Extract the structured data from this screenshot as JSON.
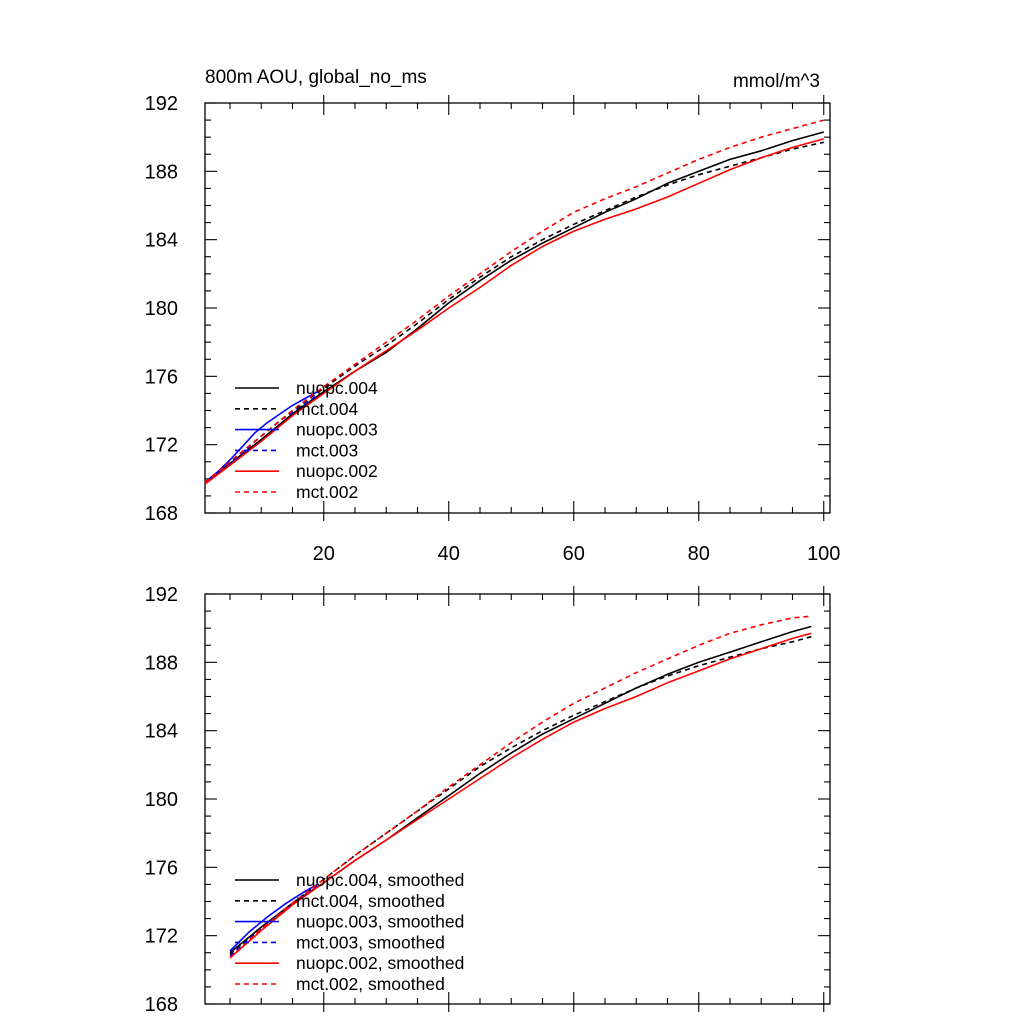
{
  "colors": {
    "black": "#000000",
    "blue": "#0000ff",
    "red": "#ff0000"
  },
  "chart_data": [
    {
      "type": "line",
      "title_left": "800m AOU, global_no_ms",
      "title_right": "mmol/m^3",
      "xlim": [
        1,
        101
      ],
      "ylim": [
        168,
        192
      ],
      "yticks": [
        168,
        172,
        176,
        180,
        184,
        188,
        192
      ],
      "xticks": [
        20,
        40,
        60,
        80,
        100
      ],
      "show_x_tick_labels": true,
      "legend_position": "bottom-left",
      "series": [
        {
          "name": "nuopc.004",
          "color": "#000000",
          "dash": "solid",
          "x": [
            1,
            5,
            10,
            15,
            20,
            25,
            30,
            35,
            40,
            45,
            50,
            55,
            60,
            65,
            70,
            75,
            80,
            85,
            90,
            95,
            100
          ],
          "y": [
            169.8,
            170.9,
            172.3,
            173.8,
            175.1,
            176.3,
            177.4,
            178.8,
            180.3,
            181.6,
            182.8,
            183.8,
            184.7,
            185.6,
            186.4,
            187.3,
            188.0,
            188.7,
            189.2,
            189.8,
            190.3
          ]
        },
        {
          "name": "mct.004",
          "color": "#000000",
          "dash": "dashed",
          "x": [
            1,
            5,
            10,
            15,
            20,
            25,
            30,
            35,
            40,
            45,
            50,
            55,
            60,
            65,
            70,
            75,
            80,
            85,
            90,
            95,
            100
          ],
          "y": [
            169.8,
            171.0,
            172.5,
            174.0,
            175.3,
            176.6,
            177.8,
            179.1,
            180.5,
            181.8,
            183.0,
            184.0,
            184.9,
            185.7,
            186.5,
            187.2,
            187.8,
            188.3,
            188.8,
            189.3,
            189.7
          ]
        },
        {
          "name": "nuopc.003",
          "color": "#0000ff",
          "dash": "solid",
          "x": [
            1,
            3,
            5,
            7,
            9,
            11,
            13,
            15,
            17,
            19
          ],
          "y": [
            169.8,
            170.4,
            171.1,
            171.9,
            172.7,
            173.3,
            173.8,
            174.3,
            174.7,
            175.1
          ]
        },
        {
          "name": "mct.003",
          "color": "#0000ff",
          "dash": "dashed",
          "x": [
            1,
            3,
            5,
            7,
            9,
            11,
            13,
            15,
            17,
            19
          ],
          "y": [
            169.8,
            170.3,
            170.9,
            171.5,
            172.2,
            172.8,
            173.4,
            173.9,
            174.4,
            174.9
          ]
        },
        {
          "name": "nuopc.002",
          "color": "#ff0000",
          "dash": "solid",
          "x": [
            1,
            5,
            10,
            15,
            20,
            25,
            30,
            35,
            40,
            45,
            50,
            55,
            60,
            65,
            70,
            75,
            80,
            85,
            90,
            95,
            100
          ],
          "y": [
            169.7,
            170.8,
            172.2,
            173.7,
            175.0,
            176.3,
            177.5,
            178.7,
            180.0,
            181.2,
            182.5,
            183.6,
            184.5,
            185.2,
            185.8,
            186.5,
            187.3,
            188.1,
            188.8,
            189.4,
            189.9
          ]
        },
        {
          "name": "mct.002",
          "color": "#ff0000",
          "dash": "dashed",
          "x": [
            1,
            5,
            10,
            15,
            20,
            25,
            30,
            35,
            40,
            45,
            50,
            55,
            60,
            65,
            70,
            75,
            80,
            85,
            90,
            95,
            100
          ],
          "y": [
            169.8,
            171.0,
            172.5,
            174.0,
            175.4,
            176.7,
            178.0,
            179.3,
            180.7,
            182.0,
            183.3,
            184.5,
            185.6,
            186.4,
            187.1,
            187.9,
            188.7,
            189.4,
            190.0,
            190.5,
            191.0
          ]
        }
      ]
    },
    {
      "type": "line",
      "xlim": [
        1,
        101
      ],
      "ylim": [
        168,
        192
      ],
      "yticks": [
        168,
        172,
        176,
        180,
        184,
        188,
        192
      ],
      "xticks": [
        20,
        40,
        60,
        80,
        100
      ],
      "show_x_tick_labels": false,
      "legend_position": "bottom-left",
      "series": [
        {
          "name": "nuopc.004, smoothed",
          "color": "#000000",
          "dash": "solid",
          "x": [
            5,
            10,
            15,
            20,
            25,
            30,
            35,
            40,
            45,
            50,
            55,
            60,
            65,
            70,
            75,
            80,
            85,
            90,
            95,
            98
          ],
          "y": [
            171.0,
            172.5,
            173.9,
            175.1,
            176.4,
            177.6,
            178.9,
            180.2,
            181.5,
            182.7,
            183.8,
            184.7,
            185.6,
            186.5,
            187.3,
            188.0,
            188.6,
            189.2,
            189.8,
            190.1
          ]
        },
        {
          "name": "mct.004, smoothed",
          "color": "#000000",
          "dash": "dashed",
          "x": [
            5,
            10,
            15,
            20,
            25,
            30,
            35,
            40,
            45,
            50,
            55,
            60,
            65,
            70,
            75,
            80,
            85,
            90,
            95,
            98
          ],
          "y": [
            170.9,
            172.5,
            173.9,
            175.3,
            176.7,
            178.0,
            179.3,
            180.6,
            181.9,
            183.0,
            184.0,
            184.9,
            185.7,
            186.5,
            187.2,
            187.8,
            188.3,
            188.8,
            189.2,
            189.5
          ]
        },
        {
          "name": "nuopc.003, smoothed",
          "color": "#0000ff",
          "dash": "solid",
          "x": [
            5,
            8,
            11,
            14,
            17,
            19
          ],
          "y": [
            171.1,
            172.2,
            173.1,
            173.9,
            174.6,
            175.0
          ]
        },
        {
          "name": "mct.003, smoothed",
          "color": "#0000ff",
          "dash": "dashed",
          "x": [
            5,
            8,
            11,
            14,
            17,
            19
          ],
          "y": [
            170.8,
            171.8,
            172.7,
            173.6,
            174.4,
            174.9
          ]
        },
        {
          "name": "nuopc.002, smoothed",
          "color": "#ff0000",
          "dash": "solid",
          "x": [
            5,
            10,
            15,
            20,
            25,
            30,
            35,
            40,
            45,
            50,
            55,
            60,
            65,
            70,
            75,
            80,
            85,
            90,
            95,
            98
          ],
          "y": [
            170.7,
            172.3,
            173.8,
            175.1,
            176.4,
            177.6,
            178.8,
            180.0,
            181.2,
            182.4,
            183.5,
            184.5,
            185.3,
            186.0,
            186.8,
            187.5,
            188.2,
            188.8,
            189.4,
            189.7
          ]
        },
        {
          "name": "mct.002, smoothed",
          "color": "#ff0000",
          "dash": "dashed",
          "x": [
            5,
            10,
            15,
            20,
            25,
            30,
            35,
            40,
            45,
            50,
            55,
            60,
            65,
            70,
            75,
            80,
            85,
            90,
            95,
            98
          ],
          "y": [
            170.7,
            172.4,
            173.9,
            175.3,
            176.7,
            178.0,
            179.3,
            180.7,
            182.0,
            183.3,
            184.5,
            185.6,
            186.5,
            187.4,
            188.2,
            189.0,
            189.7,
            190.2,
            190.6,
            190.7
          ]
        }
      ]
    }
  ]
}
